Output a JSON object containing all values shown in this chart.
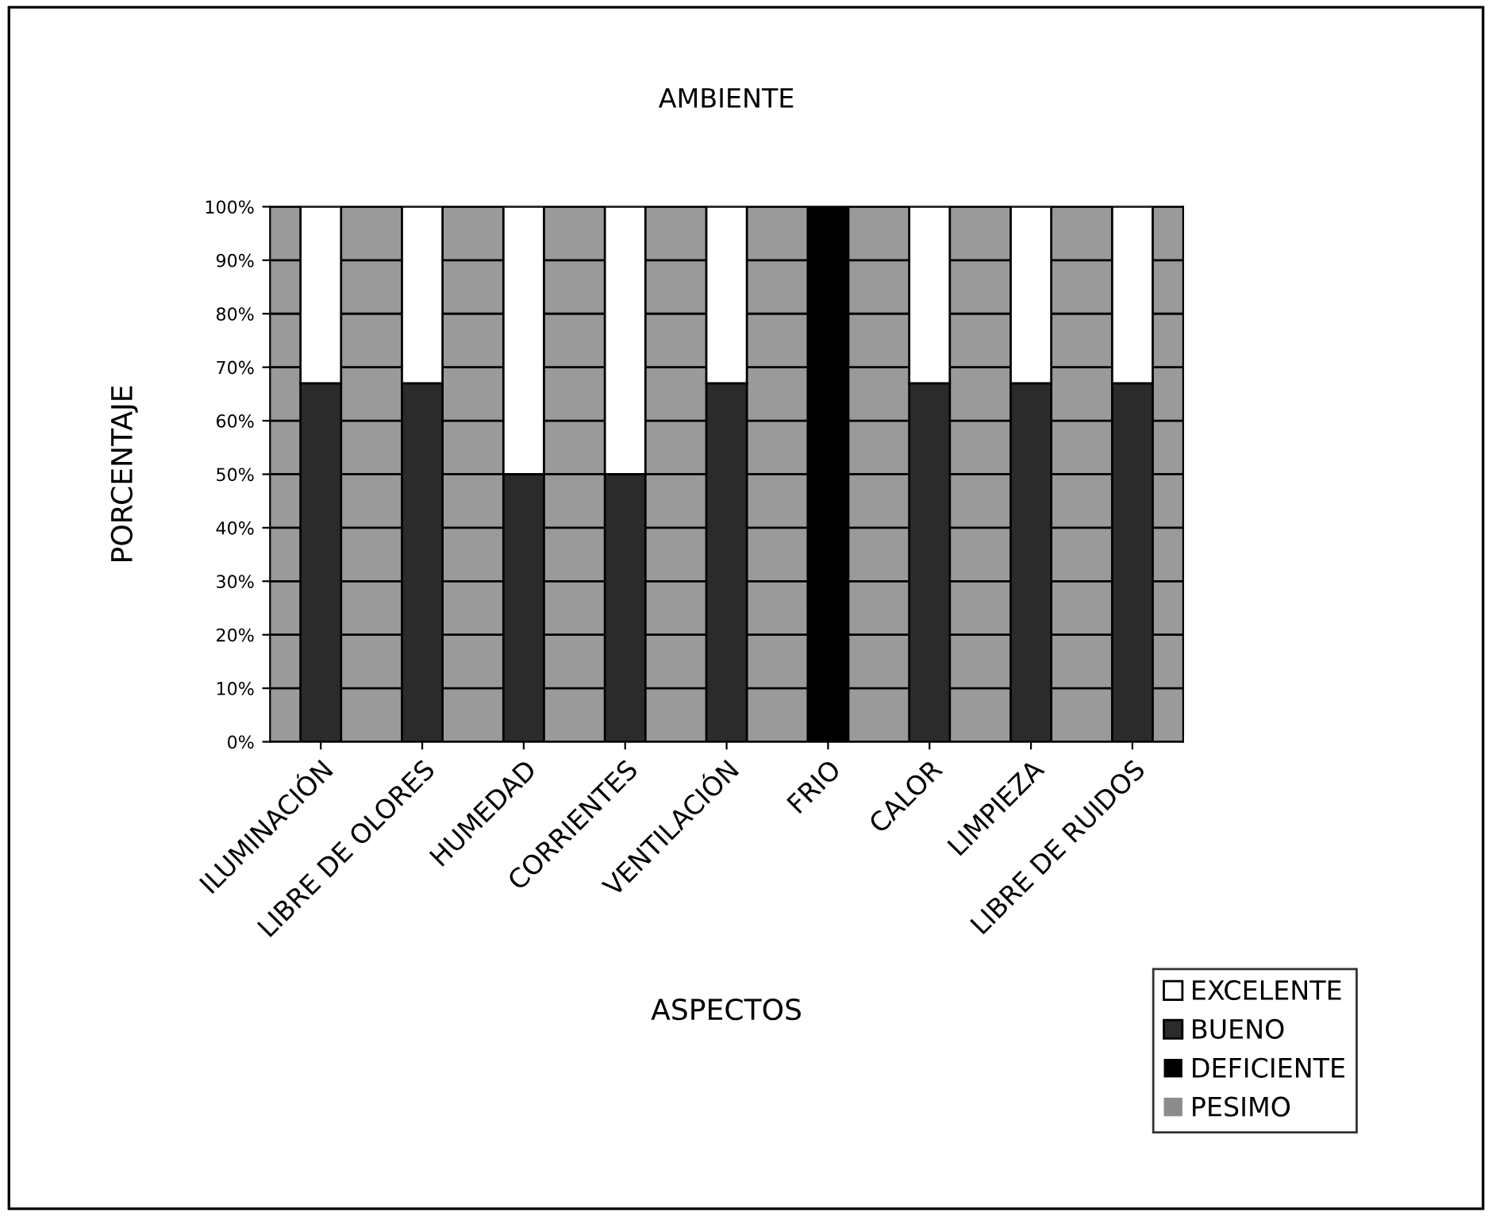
{
  "chart_data": {
    "type": "bar",
    "stacked": true,
    "title": "AMBIENTE",
    "xlabel": "ASPECTOS",
    "ylabel": "PORCENTAJE",
    "categories": [
      "ILUMINACIÓN",
      "LIBRE DE OLORES",
      "HUMEDAD",
      "CORRIENTES",
      "VENTILACIÓN",
      "FRIO",
      "CALOR",
      "LIMPIEZA",
      "LIBRE DE RUIDOS"
    ],
    "series": [
      {
        "name": "PESIMO",
        "color": "#8c8c8c",
        "values": [
          0,
          0,
          0,
          0,
          0,
          0,
          0,
          0,
          0
        ]
      },
      {
        "name": "DEFICIENTE",
        "color": "#000000",
        "values": [
          0,
          0,
          0,
          0,
          0,
          100,
          0,
          0,
          0
        ]
      },
      {
        "name": "BUENO",
        "color": "#2b2b2b",
        "values": [
          67,
          67,
          50,
          50,
          67,
          0,
          67,
          67,
          67
        ]
      },
      {
        "name": "EXCELENTE",
        "color": "#ffffff",
        "values": [
          33,
          33,
          50,
          50,
          33,
          0,
          33,
          33,
          33
        ]
      }
    ],
    "ylim": [
      0,
      100
    ],
    "yticks": [
      {
        "value": 0,
        "label": "0%"
      },
      {
        "value": 10,
        "label": "10%"
      },
      {
        "value": 20,
        "label": "20%"
      },
      {
        "value": 30,
        "label": "30%"
      },
      {
        "value": 40,
        "label": "40%"
      },
      {
        "value": 50,
        "label": "50%"
      },
      {
        "value": 60,
        "label": "60%"
      },
      {
        "value": 70,
        "label": "70%"
      },
      {
        "value": 80,
        "label": "80%"
      },
      {
        "value": 90,
        "label": "90%"
      },
      {
        "value": 100,
        "label": "100%"
      }
    ],
    "grid": "y",
    "legend": "bottom right"
  }
}
